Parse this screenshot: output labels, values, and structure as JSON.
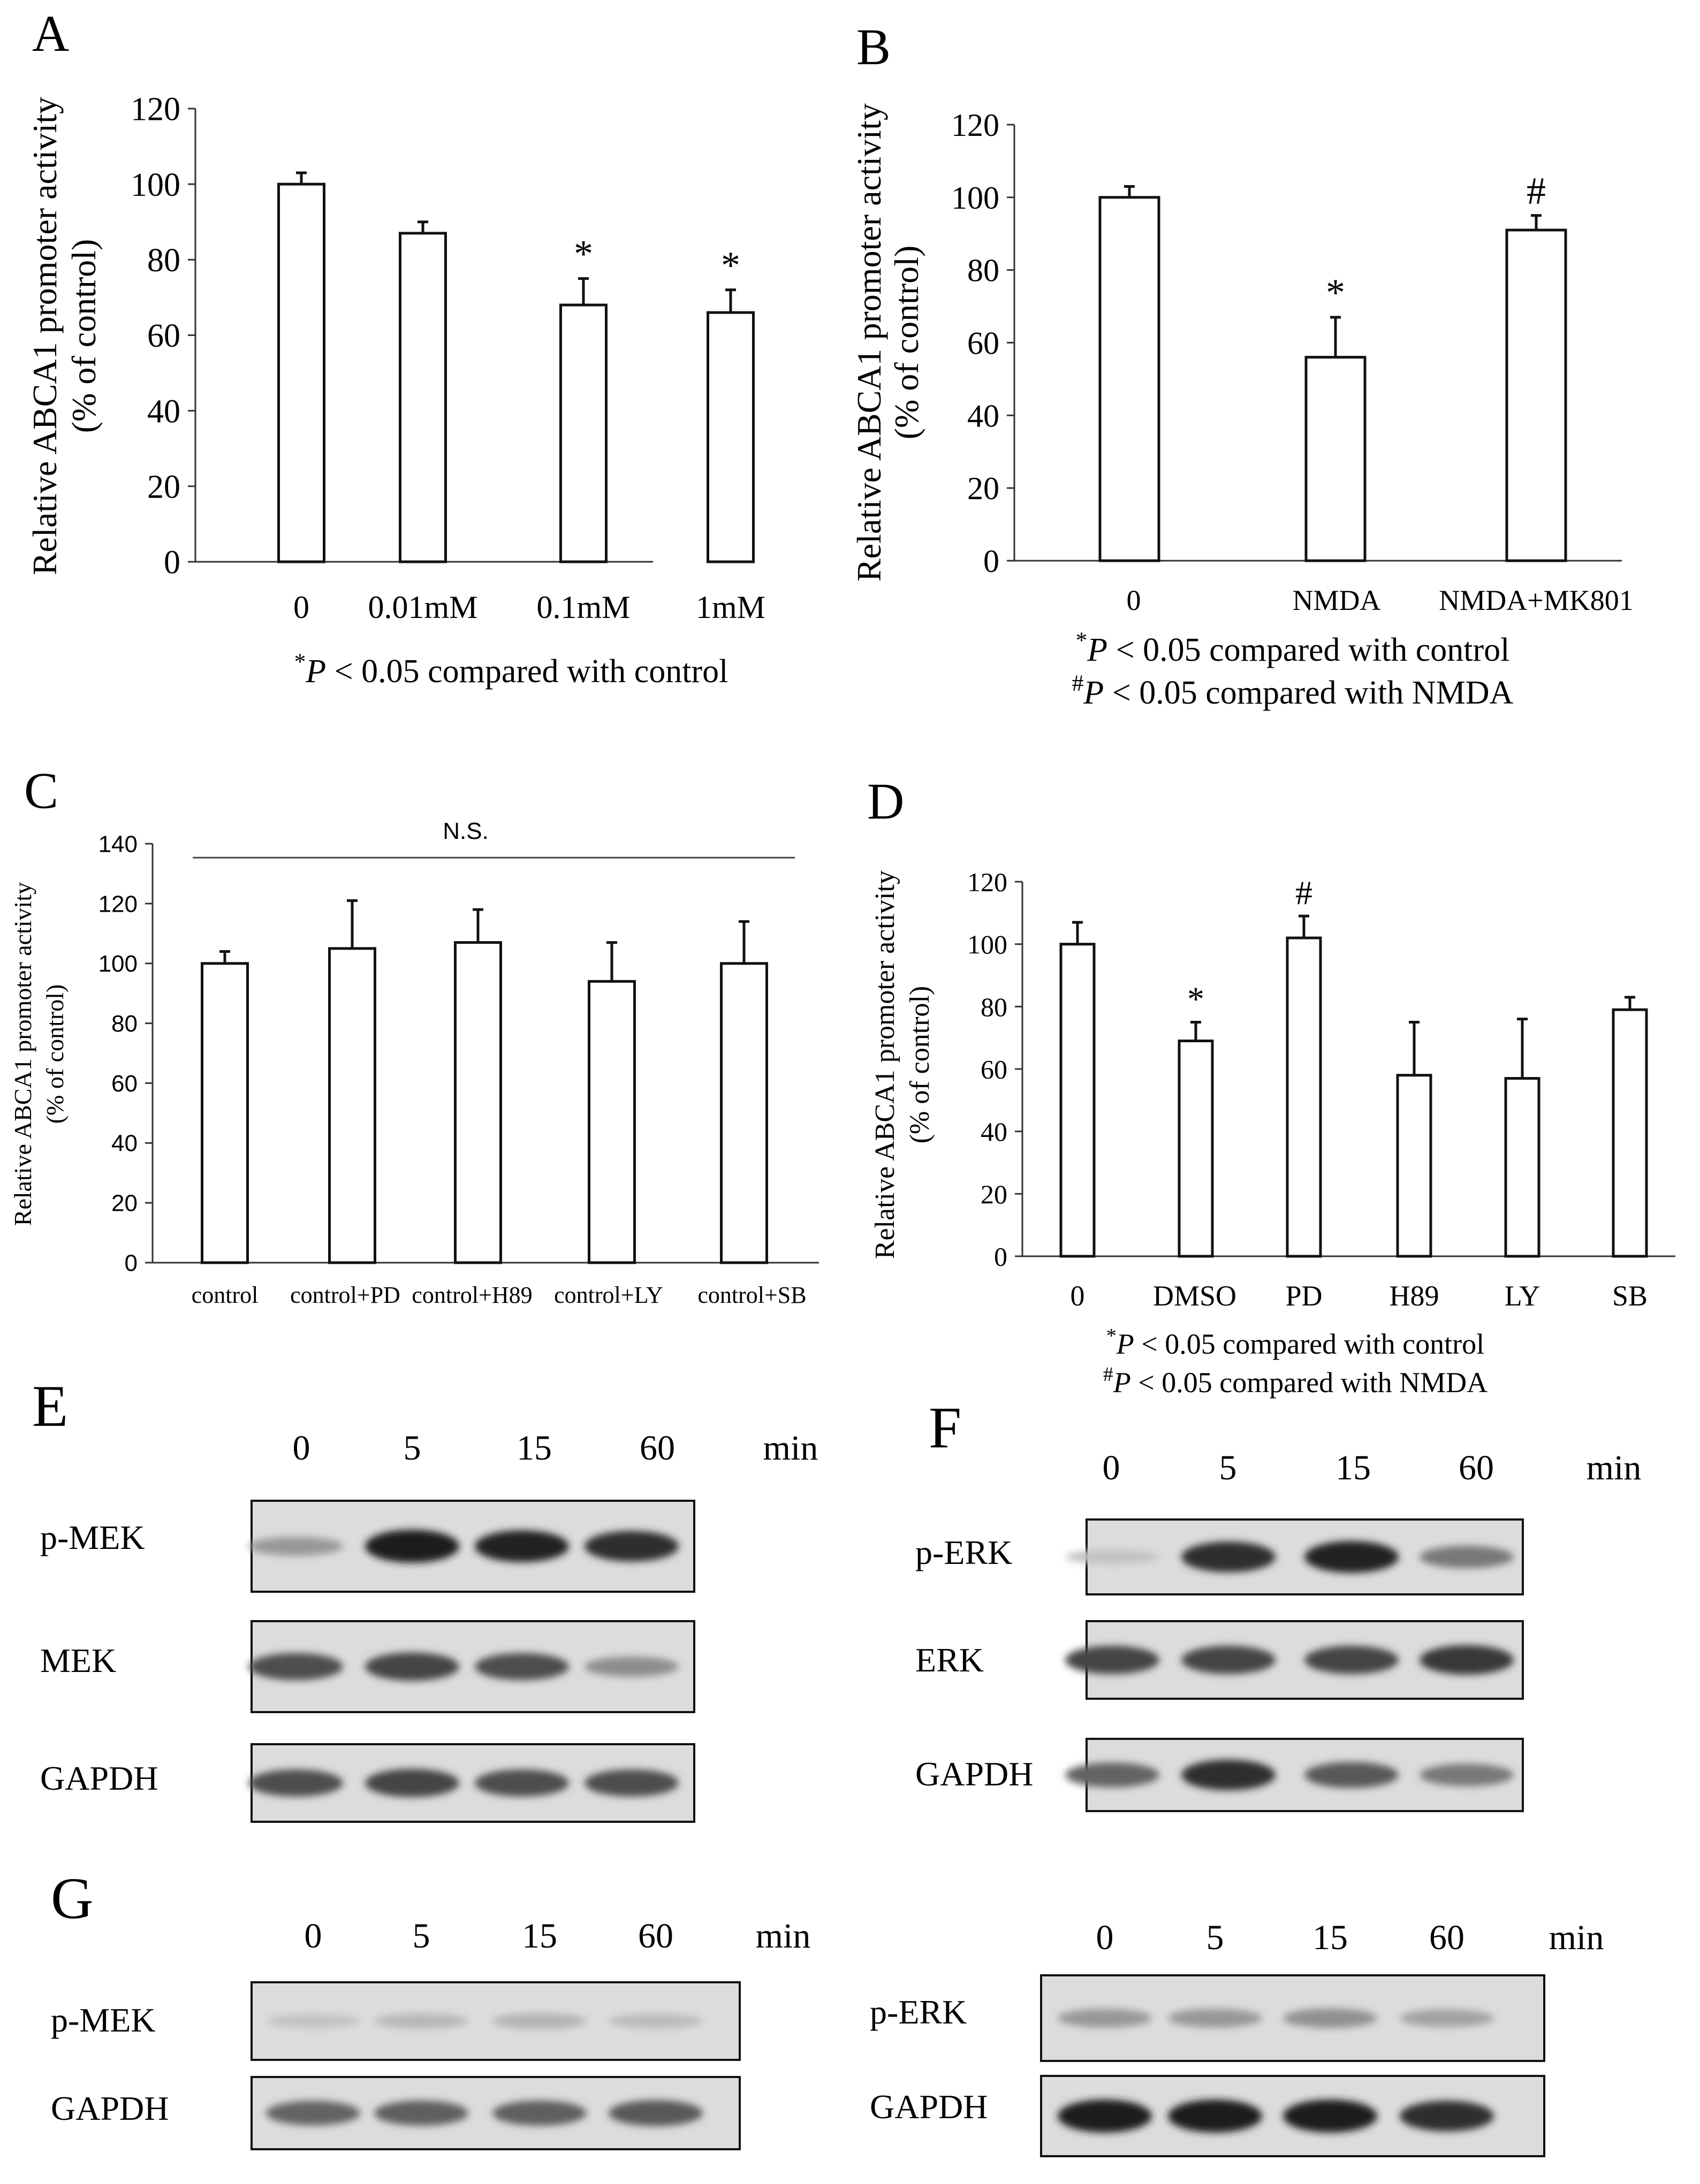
{
  "panel_labels": {
    "A": "A",
    "B": "B",
    "C": "C",
    "D": "D",
    "E": "E",
    "F": "F",
    "G": "G"
  },
  "chart_data": [
    {
      "panel": "A",
      "type": "bar",
      "categories": [
        "0",
        "0.01mM",
        "0.1mM",
        "1mM"
      ],
      "values": [
        100,
        87,
        68,
        66
      ],
      "errors": [
        3,
        3,
        7,
        6
      ],
      "significance": [
        "",
        "",
        "*",
        "*"
      ],
      "ylabel_line1": "Relative ABCA1 promoter activity",
      "ylabel_line2": "(% of control)",
      "ylim": [
        0,
        120
      ],
      "yticks": [
        0,
        20,
        40,
        60,
        80,
        100,
        120
      ],
      "footnotes": [
        {
          "sym": "*",
          "p": "P",
          "rest": " < 0.05 compared with  control"
        }
      ]
    },
    {
      "panel": "B",
      "type": "bar",
      "categories": [
        "0",
        "NMDA",
        "NMDA+MK801"
      ],
      "values": [
        100,
        56,
        91
      ],
      "errors": [
        3,
        11,
        4
      ],
      "significance": [
        "",
        "*",
        "#"
      ],
      "ylabel_line1": "Relative ABCA1 promoter activity",
      "ylabel_line2": "(% of control)",
      "ylim": [
        0,
        120
      ],
      "yticks": [
        0,
        20,
        40,
        60,
        80,
        100,
        120
      ],
      "footnotes": [
        {
          "sym": "*",
          "p": "P",
          "rest": " < 0.05 compared with  control"
        },
        {
          "sym": "#",
          "p": "P",
          "rest": " < 0.05 compared with NMDA"
        }
      ]
    },
    {
      "panel": "C",
      "type": "bar",
      "categories": [
        "control",
        "control+PD",
        "control+H89",
        "control+LY",
        "control+SB"
      ],
      "values": [
        100,
        105,
        107,
        94,
        100
      ],
      "errors": [
        4,
        16,
        11,
        13,
        14
      ],
      "significance": [
        "",
        "",
        "",
        "",
        ""
      ],
      "ylabel_line1": "Relative ABCA1 promoter activity",
      "ylabel_line2": "(% of control)",
      "ylim": [
        0,
        140
      ],
      "yticks": [
        0,
        20,
        40,
        60,
        80,
        100,
        120,
        140
      ],
      "annotation": "N.S.",
      "footnotes": []
    },
    {
      "panel": "D",
      "type": "bar",
      "categories": [
        "0",
        "DMSO",
        "PD",
        "H89",
        "LY",
        "SB"
      ],
      "values": [
        100,
        69,
        102,
        58,
        57,
        79
      ],
      "errors": [
        7,
        6,
        7,
        17,
        19,
        4
      ],
      "significance": [
        "",
        "*",
        "#",
        "",
        "",
        ""
      ],
      "ylabel_line1": "Relative ABCA1 promoter activity",
      "ylabel_line2": "(% of control)",
      "ylim": [
        0,
        120
      ],
      "yticks": [
        0,
        20,
        40,
        60,
        80,
        100,
        120
      ],
      "footnotes": [
        {
          "sym": "*",
          "p": "P",
          "rest": " < 0.05 compared with  control"
        },
        {
          "sym": "#",
          "p": "P",
          "rest": " < 0.05 compared with NMDA"
        }
      ]
    }
  ],
  "blots": {
    "time_labels": [
      "0",
      "5",
      "15",
      "60"
    ],
    "unit": "min",
    "E": [
      {
        "label": "p-MEK",
        "intensity": [
          0.35,
          0.95,
          0.9,
          0.85
        ]
      },
      {
        "label": "MEK",
        "intensity": [
          0.7,
          0.75,
          0.7,
          0.4
        ]
      },
      {
        "label": "GAPDH",
        "intensity": [
          0.7,
          0.75,
          0.7,
          0.7
        ]
      }
    ],
    "F": [
      {
        "label": "p-ERK",
        "intensity": [
          0.15,
          0.85,
          0.9,
          0.5
        ]
      },
      {
        "label": "ERK",
        "intensity": [
          0.75,
          0.75,
          0.75,
          0.8
        ]
      },
      {
        "label": "GAPDH",
        "intensity": [
          0.6,
          0.85,
          0.65,
          0.5
        ]
      }
    ],
    "G_left": [
      {
        "label": "p-MEK",
        "intensity": [
          0.15,
          0.2,
          0.22,
          0.18
        ]
      },
      {
        "label": "GAPDH",
        "intensity": [
          0.6,
          0.62,
          0.62,
          0.65
        ]
      }
    ],
    "G_right": [
      {
        "label": "p-ERK",
        "intensity": [
          0.35,
          0.35,
          0.38,
          0.3
        ]
      },
      {
        "label": "GAPDH",
        "intensity": [
          0.95,
          0.95,
          0.95,
          0.85
        ]
      }
    ]
  }
}
